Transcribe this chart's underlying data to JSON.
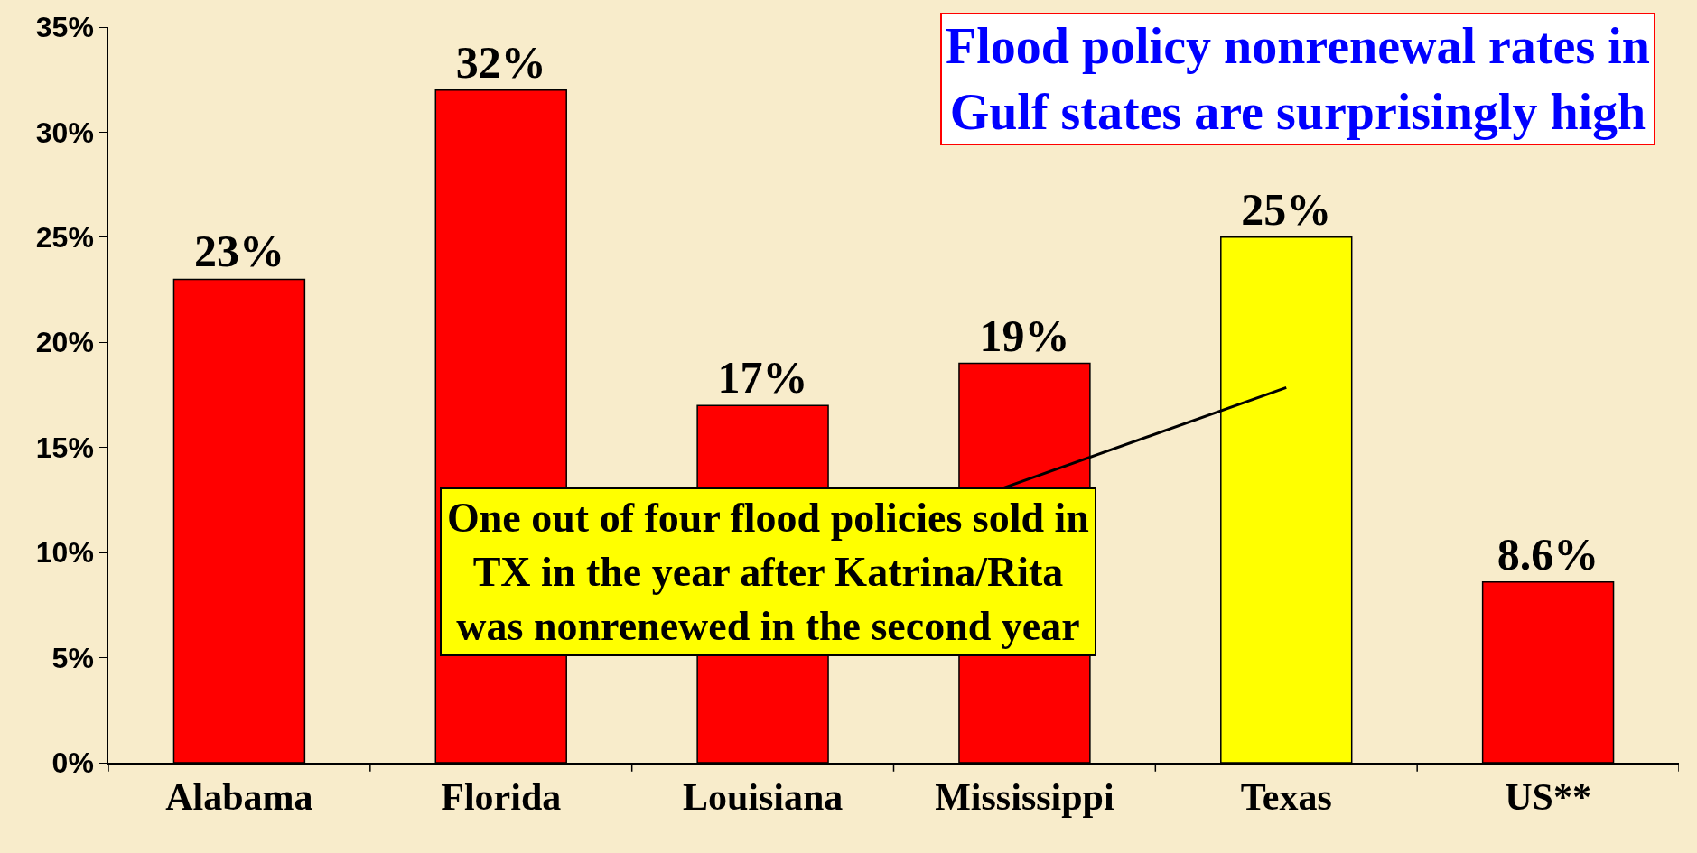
{
  "chart_data": {
    "type": "bar",
    "title": "Flood policy nonrenewal rates in\nGulf states are surprisingly high",
    "categories": [
      "Alabama",
      "Florida",
      "Louisiana",
      "Mississippi",
      "Texas",
      "US**"
    ],
    "values": [
      23,
      32,
      17,
      19,
      25,
      8.6
    ],
    "colors": [
      "#ff0000",
      "#ff0000",
      "#ff0000",
      "#ff0000",
      "#ffff00",
      "#ff0000"
    ],
    "value_labels": [
      "23%",
      "32%",
      "17%",
      "19%",
      "25%",
      "8.6%"
    ],
    "ylim": [
      0,
      35
    ],
    "yticks": [
      {
        "value": 0,
        "label": "0%"
      },
      {
        "value": 5,
        "label": "5%"
      },
      {
        "value": 10,
        "label": "10%"
      },
      {
        "value": 15,
        "label": "15%"
      },
      {
        "value": 20,
        "label": "20%"
      },
      {
        "value": 25,
        "label": "25%"
      },
      {
        "value": 30,
        "label": "30%"
      },
      {
        "value": 35,
        "label": "35%"
      }
    ],
    "grid": false,
    "annotations": [
      "One out of four flood policies sold in\nTX in the year after Katrina/Rita\nwas nonrenewed in the second year"
    ]
  }
}
